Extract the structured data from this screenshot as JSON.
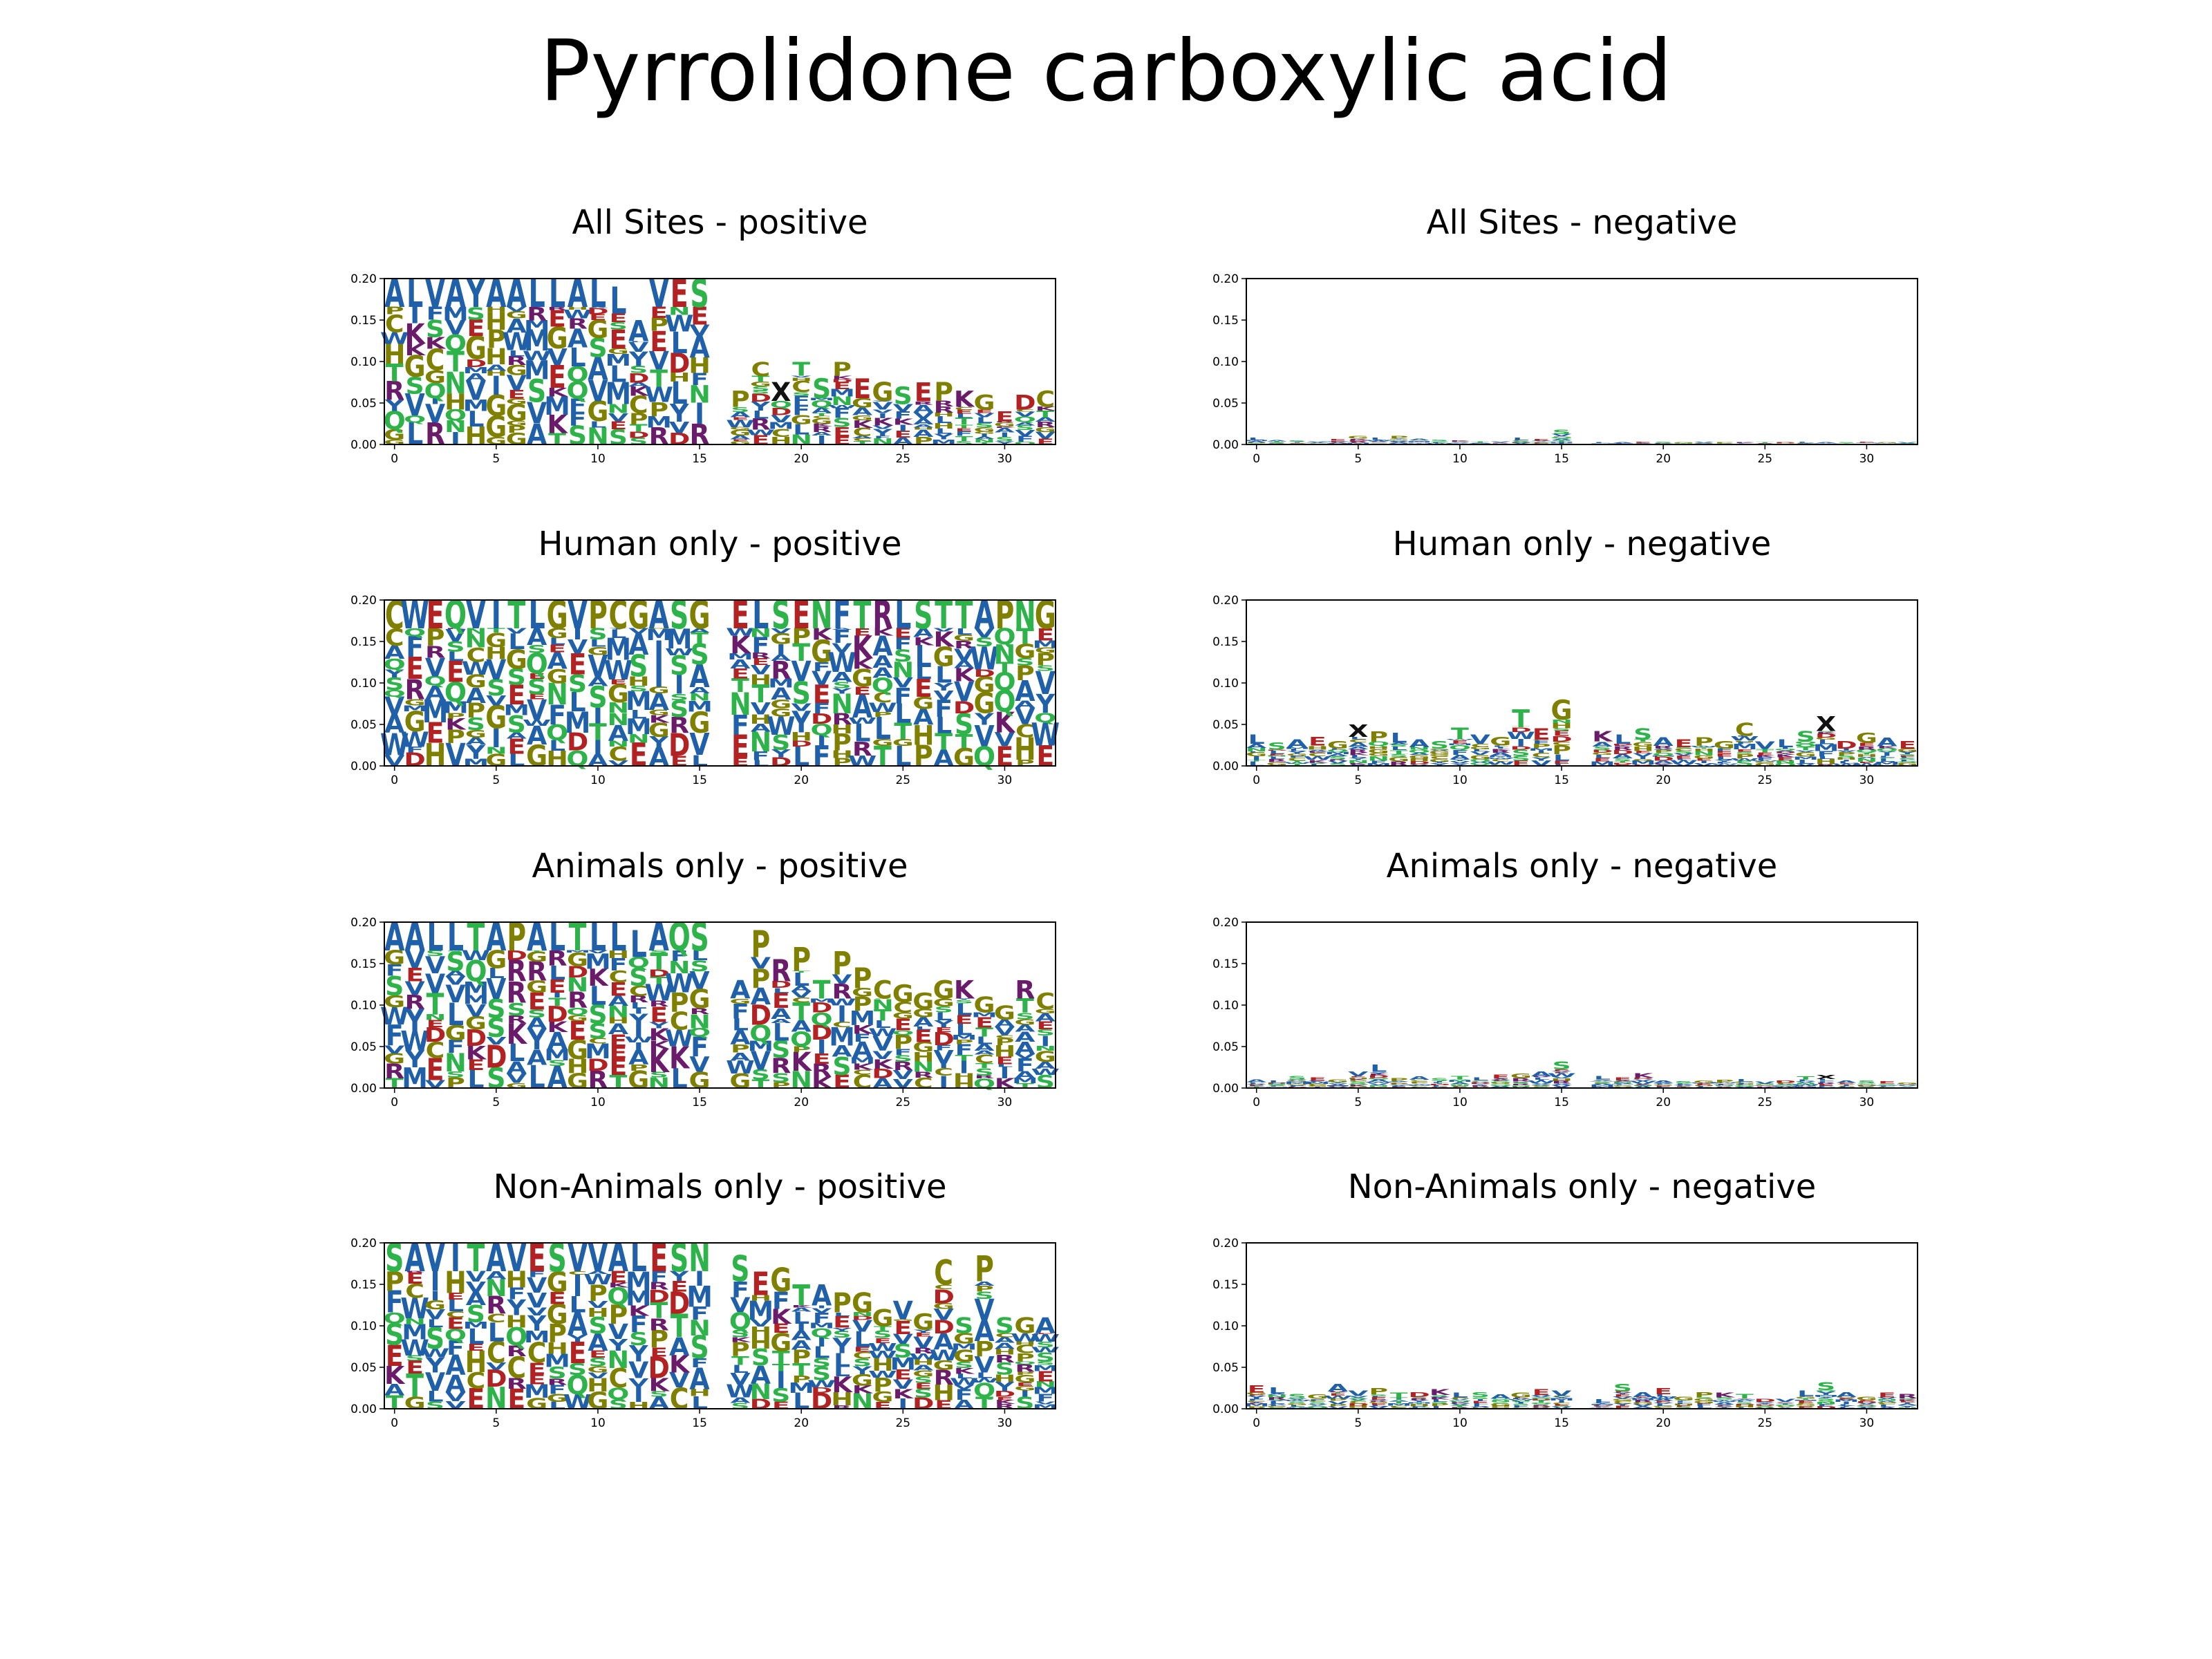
{
  "title": "Pyrrolidone carboxylic acid",
  "colors": {
    "hydrophobic": "#2060a8",
    "polar": "#2db34a",
    "acidic": "#b22222",
    "basic": "#6a1b6a",
    "special": "#808000",
    "dark": "#111111",
    "axis": "#000000"
  },
  "residue_classes": {
    "hydrophobic": "AVLIMFWY",
    "polar": "STNQ",
    "acidic": "DE",
    "basic": "KR",
    "special": "PGHC",
    "dark": "X"
  },
  "chart_data": [
    {
      "type": "sequence_logo",
      "title": "All Sites - positive",
      "xticks": [
        0,
        5,
        10,
        15,
        20,
        25,
        30
      ],
      "yticks": [
        "0.00",
        "0.05",
        "0.10",
        "0.15",
        "0.20"
      ],
      "xlim": [
        -0.5,
        32.5
      ],
      "ylim": [
        0,
        0.2
      ],
      "positions": [
        0,
        1,
        2,
        3,
        4,
        5,
        6,
        7,
        8,
        9,
        10,
        11,
        12,
        13,
        14,
        15,
        16,
        17,
        18,
        19,
        20,
        21,
        22,
        23,
        24,
        25,
        26,
        27,
        28,
        29,
        30,
        31,
        32
      ],
      "column_heights": [
        0.2,
        0.2,
        0.2,
        0.2,
        0.2,
        0.2,
        0.2,
        0.2,
        0.2,
        0.2,
        0.2,
        0.19,
        0.15,
        0.2,
        0.2,
        0.2,
        0.0,
        0.065,
        0.1,
        0.075,
        0.1,
        0.08,
        0.1,
        0.08,
        0.075,
        0.07,
        0.075,
        0.075,
        0.065,
        0.06,
        0.04,
        0.06,
        0.065
      ],
      "top_residues": [
        "A",
        "L",
        "V",
        "A",
        "Y",
        "A",
        "A",
        "L",
        "L",
        "A",
        "L",
        "L",
        "A",
        "V",
        "E",
        "S",
        "",
        "P",
        "C",
        "X",
        "T",
        "S",
        "P",
        "E",
        "G",
        "S",
        "E",
        "P",
        "K",
        "G",
        "E",
        "D",
        "C"
      ]
    },
    {
      "type": "sequence_logo",
      "title": "All Sites - negative",
      "xticks": [
        0,
        5,
        10,
        15,
        20,
        25,
        30
      ],
      "yticks": [
        "0.00",
        "0.05",
        "0.10",
        "0.15",
        "0.20"
      ],
      "xlim": [
        -0.5,
        32.5
      ],
      "ylim": [
        0,
        0.2
      ],
      "positions": [
        0,
        1,
        2,
        3,
        4,
        5,
        6,
        7,
        8,
        9,
        10,
        11,
        12,
        13,
        14,
        15,
        16,
        17,
        18,
        19,
        20,
        21,
        22,
        23,
        24,
        25,
        26,
        27,
        28,
        29,
        30,
        31,
        32
      ],
      "column_heights": [
        0.008,
        0.006,
        0.005,
        0.004,
        0.007,
        0.01,
        0.008,
        0.01,
        0.007,
        0.006,
        0.005,
        0.004,
        0.004,
        0.008,
        0.007,
        0.018,
        0.0,
        0.003,
        0.003,
        0.003,
        0.003,
        0.003,
        0.003,
        0.003,
        0.003,
        0.003,
        0.003,
        0.003,
        0.003,
        0.003,
        0.003,
        0.003,
        0.003
      ],
      "top_residues": [
        "L",
        "A",
        "S",
        "V",
        "E",
        "G",
        "L",
        "P",
        "A",
        "S",
        "K",
        "T",
        "V",
        "L",
        "E",
        "S",
        "",
        "L",
        "A",
        "E",
        "S",
        "G",
        "V",
        "P",
        "K",
        "T",
        "D",
        "L",
        "A",
        "S",
        "E",
        "G",
        "V"
      ]
    },
    {
      "type": "sequence_logo",
      "title": "Human only - positive",
      "xticks": [
        0,
        5,
        10,
        15,
        20,
        25,
        30
      ],
      "yticks": [
        "0.00",
        "0.05",
        "0.10",
        "0.15",
        "0.20"
      ],
      "xlim": [
        -0.5,
        32.5
      ],
      "ylim": [
        0,
        0.2
      ],
      "positions": [
        0,
        1,
        2,
        3,
        4,
        5,
        6,
        7,
        8,
        9,
        10,
        11,
        12,
        13,
        14,
        15,
        16,
        17,
        18,
        19,
        20,
        21,
        22,
        23,
        24,
        25,
        26,
        27,
        28,
        29,
        30,
        31,
        32
      ],
      "column_heights": [
        0.2,
        0.2,
        0.2,
        0.2,
        0.2,
        0.2,
        0.2,
        0.2,
        0.2,
        0.2,
        0.2,
        0.2,
        0.2,
        0.2,
        0.2,
        0.2,
        0.0,
        0.2,
        0.2,
        0.2,
        0.2,
        0.2,
        0.2,
        0.2,
        0.2,
        0.2,
        0.2,
        0.2,
        0.2,
        0.2,
        0.2,
        0.2,
        0.2
      ],
      "top_residues": [
        "C",
        "W",
        "E",
        "Q",
        "V",
        "I",
        "T",
        "L",
        "G",
        "V",
        "P",
        "C",
        "G",
        "A",
        "S",
        "G",
        "",
        "E",
        "L",
        "S",
        "E",
        "N",
        "F",
        "T",
        "R",
        "L",
        "S",
        "T",
        "T",
        "A",
        "P",
        "N",
        "G"
      ]
    },
    {
      "type": "sequence_logo",
      "title": "Human only - negative",
      "xticks": [
        0,
        5,
        10,
        15,
        20,
        25,
        30
      ],
      "yticks": [
        "0.00",
        "0.05",
        "0.10",
        "0.15",
        "0.20"
      ],
      "xlim": [
        -0.5,
        32.5
      ],
      "ylim": [
        0,
        0.2
      ],
      "positions": [
        0,
        1,
        2,
        3,
        4,
        5,
        6,
        7,
        8,
        9,
        10,
        11,
        12,
        13,
        14,
        15,
        16,
        17,
        18,
        19,
        20,
        21,
        22,
        23,
        24,
        25,
        26,
        27,
        28,
        29,
        30,
        31,
        32
      ],
      "column_heights": [
        0.038,
        0.028,
        0.032,
        0.035,
        0.03,
        0.05,
        0.042,
        0.04,
        0.032,
        0.03,
        0.046,
        0.038,
        0.035,
        0.068,
        0.045,
        0.08,
        0.0,
        0.042,
        0.038,
        0.045,
        0.035,
        0.032,
        0.035,
        0.03,
        0.052,
        0.03,
        0.032,
        0.042,
        0.06,
        0.03,
        0.04,
        0.034,
        0.03
      ],
      "top_residues": [
        "L",
        "S",
        "A",
        "E",
        "G",
        "X",
        "P",
        "L",
        "A",
        "S",
        "T",
        "V",
        "G",
        "T",
        "E",
        "G",
        "",
        "K",
        "L",
        "S",
        "A",
        "E",
        "P",
        "G",
        "C",
        "V",
        "L",
        "S",
        "X",
        "D",
        "G",
        "A",
        "E"
      ]
    },
    {
      "type": "sequence_logo",
      "title": "Animals only - positive",
      "xticks": [
        0,
        5,
        10,
        15,
        20,
        25,
        30
      ],
      "yticks": [
        "0.00",
        "0.05",
        "0.10",
        "0.15",
        "0.20"
      ],
      "xlim": [
        -0.5,
        32.5
      ],
      "ylim": [
        0,
        0.2
      ],
      "positions": [
        0,
        1,
        2,
        3,
        4,
        5,
        6,
        7,
        8,
        9,
        10,
        11,
        12,
        13,
        14,
        15,
        16,
        17,
        18,
        19,
        20,
        21,
        22,
        23,
        24,
        25,
        26,
        27,
        28,
        29,
        30,
        31,
        32
      ],
      "column_heights": [
        0.2,
        0.2,
        0.2,
        0.2,
        0.2,
        0.2,
        0.2,
        0.2,
        0.2,
        0.2,
        0.2,
        0.2,
        0.19,
        0.2,
        0.2,
        0.2,
        0.0,
        0.13,
        0.19,
        0.155,
        0.17,
        0.13,
        0.165,
        0.145,
        0.13,
        0.125,
        0.115,
        0.13,
        0.13,
        0.11,
        0.1,
        0.13,
        0.115
      ],
      "top_residues": [
        "A",
        "A",
        "L",
        "L",
        "T",
        "A",
        "P",
        "A",
        "L",
        "T",
        "L",
        "L",
        "L",
        "A",
        "Q",
        "S",
        "",
        "A",
        "P",
        "R",
        "P",
        "T",
        "P",
        "P",
        "C",
        "G",
        "G",
        "G",
        "K",
        "G",
        "G",
        "R",
        "C"
      ]
    },
    {
      "type": "sequence_logo",
      "title": "Animals only - negative",
      "xticks": [
        0,
        5,
        10,
        15,
        20,
        25,
        30
      ],
      "yticks": [
        "0.00",
        "0.05",
        "0.10",
        "0.15",
        "0.20"
      ],
      "xlim": [
        -0.5,
        32.5
      ],
      "ylim": [
        0,
        0.2
      ],
      "positions": [
        0,
        1,
        2,
        3,
        4,
        5,
        6,
        7,
        8,
        9,
        10,
        11,
        12,
        13,
        14,
        15,
        16,
        17,
        18,
        19,
        20,
        21,
        22,
        23,
        24,
        25,
        26,
        27,
        28,
        29,
        30,
        31,
        32
      ],
      "column_heights": [
        0.01,
        0.009,
        0.015,
        0.013,
        0.01,
        0.02,
        0.028,
        0.012,
        0.014,
        0.012,
        0.015,
        0.013,
        0.016,
        0.018,
        0.02,
        0.032,
        0.0,
        0.015,
        0.013,
        0.018,
        0.009,
        0.008,
        0.009,
        0.01,
        0.011,
        0.008,
        0.009,
        0.015,
        0.016,
        0.009,
        0.009,
        0.008,
        0.007
      ],
      "top_residues": [
        "A",
        "L",
        "S",
        "E",
        "G",
        "V",
        "L",
        "P",
        "A",
        "S",
        "T",
        "L",
        "E",
        "G",
        "A",
        "S",
        "",
        "L",
        "E",
        "K",
        "A",
        "S",
        "G",
        "P",
        "L",
        "V",
        "D",
        "T",
        "X",
        "A",
        "S",
        "E",
        "G"
      ]
    },
    {
      "type": "sequence_logo",
      "title": "Non-Animals only - positive",
      "xticks": [
        0,
        5,
        10,
        15,
        20,
        25,
        30
      ],
      "yticks": [
        "0.00",
        "0.05",
        "0.10",
        "0.15",
        "0.20"
      ],
      "xlim": [
        -0.5,
        32.5
      ],
      "ylim": [
        0,
        0.2
      ],
      "positions": [
        0,
        1,
        2,
        3,
        4,
        5,
        6,
        7,
        8,
        9,
        10,
        11,
        12,
        13,
        14,
        15,
        16,
        17,
        18,
        19,
        20,
        21,
        22,
        23,
        24,
        25,
        26,
        27,
        28,
        29,
        30,
        31,
        32
      ],
      "column_heights": [
        0.2,
        0.2,
        0.2,
        0.2,
        0.2,
        0.2,
        0.2,
        0.2,
        0.2,
        0.2,
        0.2,
        0.2,
        0.2,
        0.2,
        0.2,
        0.2,
        0.0,
        0.185,
        0.165,
        0.17,
        0.15,
        0.15,
        0.14,
        0.14,
        0.12,
        0.13,
        0.115,
        0.18,
        0.11,
        0.185,
        0.11,
        0.11,
        0.11
      ],
      "top_residues": [
        "S",
        "A",
        "V",
        "I",
        "T",
        "A",
        "V",
        "E",
        "S",
        "V",
        "V",
        "A",
        "L",
        "E",
        "S",
        "N",
        "",
        "S",
        "E",
        "G",
        "T",
        "A",
        "P",
        "G",
        "G",
        "V",
        "G",
        "C",
        "S",
        "P",
        "S",
        "G",
        "A"
      ]
    },
    {
      "type": "sequence_logo",
      "title": "Non-Animals only - negative",
      "xticks": [
        0,
        5,
        10,
        15,
        20,
        25,
        30
      ],
      "yticks": [
        "0.00",
        "0.05",
        "0.10",
        "0.15",
        "0.20"
      ],
      "xlim": [
        -0.5,
        32.5
      ],
      "ylim": [
        0,
        0.2
      ],
      "positions": [
        0,
        1,
        2,
        3,
        4,
        5,
        6,
        7,
        8,
        9,
        10,
        11,
        12,
        13,
        14,
        15,
        16,
        17,
        18,
        19,
        20,
        21,
        22,
        23,
        24,
        25,
        26,
        27,
        28,
        29,
        30,
        31,
        32
      ],
      "column_heights": [
        0.028,
        0.026,
        0.018,
        0.017,
        0.03,
        0.022,
        0.025,
        0.02,
        0.02,
        0.024,
        0.02,
        0.02,
        0.018,
        0.02,
        0.024,
        0.022,
        0.0,
        0.012,
        0.03,
        0.02,
        0.025,
        0.015,
        0.02,
        0.02,
        0.018,
        0.012,
        0.012,
        0.022,
        0.032,
        0.02,
        0.015,
        0.02,
        0.018
      ],
      "top_residues": [
        "E",
        "L",
        "S",
        "G",
        "A",
        "V",
        "P",
        "T",
        "D",
        "K",
        "L",
        "S",
        "A",
        "G",
        "E",
        "V",
        "",
        "L",
        "S",
        "A",
        "E",
        "G",
        "P",
        "K",
        "T",
        "D",
        "V",
        "L",
        "S",
        "A",
        "G",
        "E",
        "R"
      ]
    }
  ]
}
